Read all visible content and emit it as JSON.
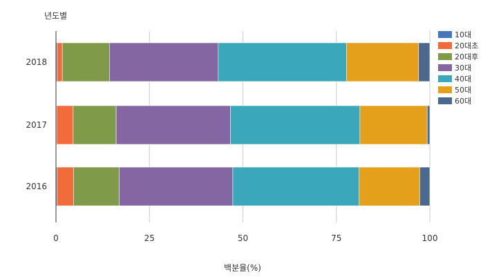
{
  "chart_data": {
    "type": "bar",
    "orientation": "horizontal",
    "stacked": true,
    "ylabel": "년도별",
    "xlabel": "백분율(%)",
    "categories": [
      "2018",
      "2017",
      "2016"
    ],
    "xlim": [
      0,
      100
    ],
    "xticks": [
      0,
      25,
      50,
      75,
      100
    ],
    "grid": true,
    "legend_position": "right",
    "series": [
      {
        "name": "10대",
        "color": "#4477bb",
        "values": [
          0.3,
          0.2,
          0.3
        ]
      },
      {
        "name": "20대초",
        "color": "#f26b3a",
        "values": [
          1.4,
          4.4,
          4.4
        ]
      },
      {
        "name": "20대후",
        "color": "#7f9a48",
        "values": [
          12.6,
          11.5,
          12.2
        ]
      },
      {
        "name": "30대",
        "color": "#8467a2",
        "values": [
          29.1,
          30.6,
          30.4
        ]
      },
      {
        "name": "40대",
        "color": "#3ba7bb",
        "values": [
          34.3,
          34.6,
          33.8
        ]
      },
      {
        "name": "50대",
        "color": "#e4a01b",
        "values": [
          19.3,
          18.0,
          16.2
        ]
      },
      {
        "name": "60대",
        "color": "#4b698f",
        "values": [
          3.0,
          0.7,
          2.7
        ]
      }
    ]
  }
}
